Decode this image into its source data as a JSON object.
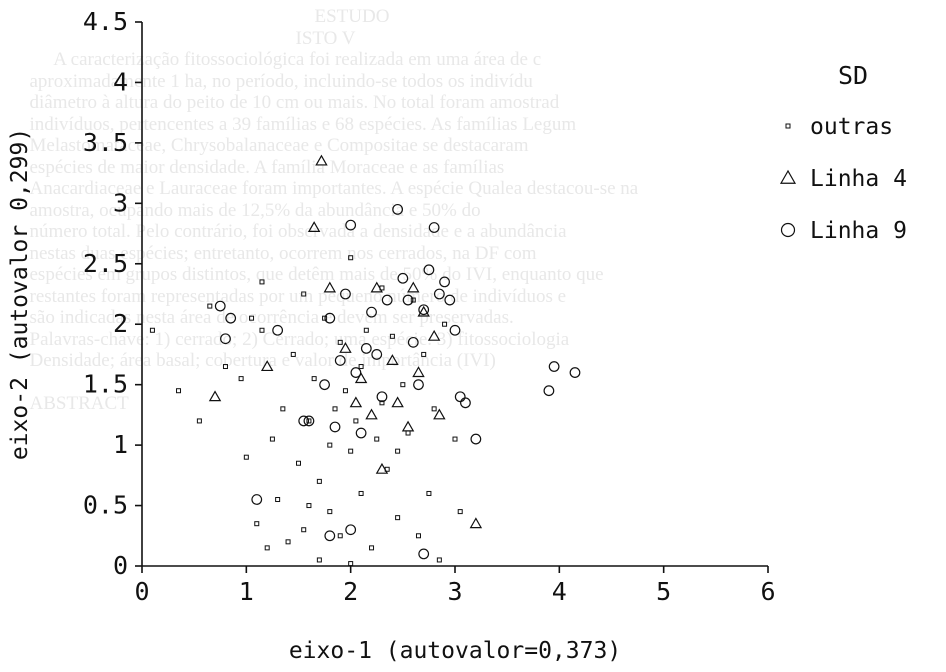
{
  "chart_data": {
    "type": "scatter",
    "title": "",
    "xlabel": "eixo-1 (autovalor=0,373)",
    "ylabel": "eixo-2 (autovalor 0,299)",
    "xlim": [
      0,
      6
    ],
    "ylim": [
      0,
      4.5
    ],
    "x_ticks": [
      "0",
      "1",
      "2",
      "3",
      "4",
      "5",
      "6"
    ],
    "y_ticks": [
      "0",
      "0.5",
      "1",
      "1.5",
      "2",
      "2.5",
      "3",
      "3.5",
      "4",
      "4.5"
    ],
    "grid": false,
    "legend": {
      "title": "SD",
      "position": "right"
    },
    "series": [
      {
        "name": "outras",
        "marker": "small-square",
        "points": [
          [
            0.1,
            1.95
          ],
          [
            0.35,
            1.45
          ],
          [
            0.55,
            1.2
          ],
          [
            0.65,
            2.15
          ],
          [
            0.8,
            1.65
          ],
          [
            0.95,
            1.55
          ],
          [
            1.0,
            0.9
          ],
          [
            1.05,
            2.05
          ],
          [
            1.1,
            0.35
          ],
          [
            1.15,
            1.95
          ],
          [
            1.2,
            0.15
          ],
          [
            1.25,
            1.05
          ],
          [
            1.3,
            0.55
          ],
          [
            1.35,
            1.3
          ],
          [
            1.4,
            0.2
          ],
          [
            1.45,
            1.75
          ],
          [
            1.5,
            0.85
          ],
          [
            1.55,
            2.25
          ],
          [
            1.6,
            0.5
          ],
          [
            1.6,
            1.2
          ],
          [
            1.65,
            1.55
          ],
          [
            1.7,
            0.7
          ],
          [
            1.75,
            2.05
          ],
          [
            1.8,
            1.0
          ],
          [
            1.85,
            1.3
          ],
          [
            1.9,
            0.25
          ],
          [
            1.9,
            1.85
          ],
          [
            1.95,
            1.45
          ],
          [
            2.0,
            2.55
          ],
          [
            2.0,
            0.95
          ],
          [
            2.05,
            1.2
          ],
          [
            2.1,
            0.6
          ],
          [
            2.1,
            1.65
          ],
          [
            2.15,
            1.95
          ],
          [
            2.2,
            0.15
          ],
          [
            2.25,
            1.05
          ],
          [
            2.3,
            1.35
          ],
          [
            2.3,
            2.3
          ],
          [
            2.35,
            0.8
          ],
          [
            2.4,
            1.9
          ],
          [
            2.45,
            0.4
          ],
          [
            2.5,
            1.5
          ],
          [
            2.55,
            1.1
          ],
          [
            2.6,
            2.2
          ],
          [
            2.65,
            0.25
          ],
          [
            2.7,
            1.75
          ],
          [
            2.75,
            0.6
          ],
          [
            2.8,
            1.3
          ],
          [
            2.85,
            0.05
          ],
          [
            2.9,
            2.0
          ],
          [
            3.0,
            1.05
          ],
          [
            3.05,
            0.45
          ],
          [
            1.15,
            2.35
          ],
          [
            1.7,
            0.05
          ],
          [
            2.45,
            0.95
          ],
          [
            1.8,
            0.45
          ],
          [
            1.55,
            0.3
          ],
          [
            2.0,
            0.02
          ]
        ]
      },
      {
        "name": "Linha 4",
        "marker": "triangle",
        "points": [
          [
            0.7,
            1.4
          ],
          [
            1.2,
            1.65
          ],
          [
            1.65,
            2.8
          ],
          [
            1.72,
            3.35
          ],
          [
            1.8,
            2.3
          ],
          [
            1.95,
            1.8
          ],
          [
            2.05,
            1.35
          ],
          [
            2.1,
            1.55
          ],
          [
            2.2,
            1.25
          ],
          [
            2.25,
            2.3
          ],
          [
            2.3,
            0.8
          ],
          [
            2.4,
            1.7
          ],
          [
            2.45,
            1.35
          ],
          [
            2.55,
            1.15
          ],
          [
            2.65,
            1.6
          ],
          [
            2.7,
            2.1
          ],
          [
            2.8,
            1.9
          ],
          [
            2.85,
            1.25
          ],
          [
            3.2,
            0.35
          ],
          [
            2.6,
            2.3
          ]
        ]
      },
      {
        "name": "Linha 9",
        "marker": "circle",
        "points": [
          [
            0.75,
            2.15
          ],
          [
            0.8,
            1.88
          ],
          [
            0.85,
            2.05
          ],
          [
            1.1,
            0.55
          ],
          [
            1.3,
            1.95
          ],
          [
            1.55,
            1.2
          ],
          [
            1.75,
            1.5
          ],
          [
            1.8,
            2.05
          ],
          [
            1.85,
            1.15
          ],
          [
            1.9,
            1.7
          ],
          [
            1.95,
            2.25
          ],
          [
            2.0,
            2.82
          ],
          [
            2.05,
            1.6
          ],
          [
            2.1,
            1.1
          ],
          [
            2.15,
            1.8
          ],
          [
            2.2,
            2.1
          ],
          [
            2.25,
            1.75
          ],
          [
            2.3,
            1.4
          ],
          [
            2.35,
            2.2
          ],
          [
            2.45,
            2.95
          ],
          [
            2.5,
            2.38
          ],
          [
            2.55,
            2.2
          ],
          [
            2.6,
            1.85
          ],
          [
            2.65,
            1.5
          ],
          [
            2.7,
            2.12
          ],
          [
            2.75,
            2.45
          ],
          [
            2.8,
            2.8
          ],
          [
            2.85,
            2.25
          ],
          [
            2.9,
            2.35
          ],
          [
            2.95,
            2.2
          ],
          [
            3.0,
            1.95
          ],
          [
            3.05,
            1.4
          ],
          [
            3.1,
            1.35
          ],
          [
            3.2,
            1.05
          ],
          [
            3.95,
            1.65
          ],
          [
            4.15,
            1.6
          ],
          [
            3.9,
            1.45
          ],
          [
            1.6,
            1.2
          ],
          [
            2.0,
            0.3
          ],
          [
            2.7,
            0.1
          ],
          [
            1.8,
            0.25
          ]
        ]
      }
    ]
  },
  "background_text": "                                                              ESTUDO\n                                                          ISTO V\n       A caracterização fitossociológica foi realizada em uma área de c\n  aproximadamente 1 ha, no período, incluindo-se todos os indivídu\n  diâmetro à altura do peito de 10 cm ou mais. No total foram amostrad\n  indivíduos, pertencentes a 39 famílias e 68 espécies. As famílias Legum\n  Melastomataceae, Chrysobalanaceae e Compositae se destacaram\n  espécies de maior densidade. A família Moraceae e as famílias\n  Anacardiaceae e Lauraceae foram importantes. A espécie Qualea destacou-se na\n  amostra, ocupando mais de 12,5% da abundância e 50% do\n  número total. Pelo contrário, foi observada a densidade e a abundância\n  nestas duas espécies; entretanto, ocorrem nos cerrados, na DF com\n  espécies em grupos distintos, que detêm mais de 50% do IVI, enquanto que\n  restantes foram representadas por um pequeno número de indivíduos e\n  são indicadas nesta área de ocorrência e devem ser preservadas.\n  Palavras-chave: 1) cerrado; 2) Cerrado; uma espécie. 3) fitossociologia\n  Densidade; área basal; cobertura e valor de importância (IVI)\n\n  ABSTRACT"
}
